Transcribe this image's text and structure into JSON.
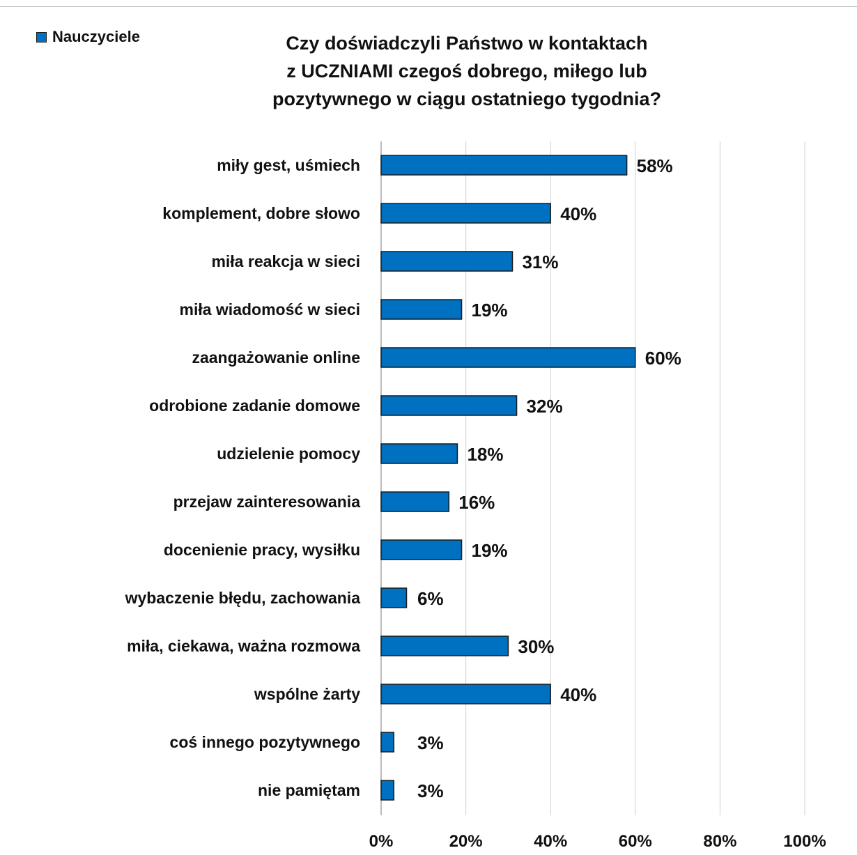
{
  "chart_data": {
    "type": "bar",
    "orientation": "horizontal",
    "title": "Czy doświadczyli Państwo w kontaktach\nz UCZNIAMI czegoś dobrego, miłego lub\npozytywnego w ciągu ostatniego tygodnia?",
    "legend": {
      "position": "top-left",
      "entries": [
        "Nauczyciele"
      ]
    },
    "categories": [
      "miły gest, uśmiech",
      "komplement, dobre słowo",
      "miła reakcja w sieci",
      "miła wiadomość w sieci",
      "zaangażowanie online",
      "odrobione zadanie domowe",
      "udzielenie pomocy",
      "przejaw zainteresowania",
      "docenienie pracy, wysiłku",
      "wybaczenie błędu, zachowania",
      "miła, ciekawa, ważna rozmowa",
      "wspólne żarty",
      "coś innego pozytywnego",
      "nie pamiętam"
    ],
    "series": [
      {
        "name": "Nauczyciele",
        "color": "#0070c0",
        "values": [
          58,
          40,
          31,
          19,
          60,
          32,
          18,
          16,
          19,
          6,
          30,
          40,
          3,
          3
        ],
        "labels": [
          "58%",
          "40%",
          "31%",
          "19%",
          "60%",
          "32%",
          "18%",
          "16%",
          "19%",
          "6%",
          "30%",
          "40%",
          "3%",
          "3%"
        ]
      }
    ],
    "xlim": [
      0,
      100
    ],
    "x_ticks": [
      0,
      20,
      40,
      60,
      80,
      100
    ],
    "x_tick_labels": [
      "0%",
      "20%",
      "40%",
      "60%",
      "80%",
      "100%"
    ],
    "grid": "vertical"
  }
}
